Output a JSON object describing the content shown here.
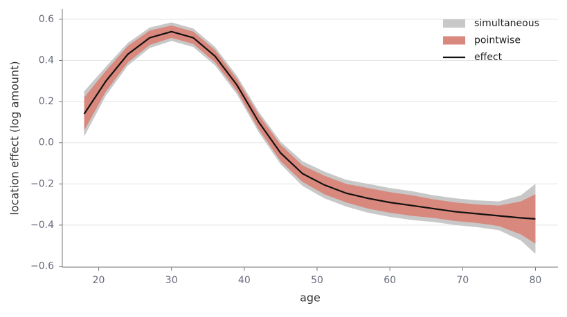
{
  "chart_data": {
    "type": "band-line",
    "xlabel": "age",
    "ylabel": "location effect (log amount)",
    "x": [
      18,
      21,
      24,
      27,
      30,
      33,
      36,
      39,
      42,
      45,
      48,
      51,
      54,
      57,
      60,
      63,
      66,
      69,
      72,
      75,
      78,
      80
    ],
    "series": [
      {
        "name": "simultaneous",
        "kind": "band",
        "color": "#c8c8c8",
        "lower": [
          0.03,
          0.23,
          0.375,
          0.46,
          0.495,
          0.465,
          0.375,
          0.235,
          0.05,
          -0.105,
          -0.21,
          -0.27,
          -0.31,
          -0.34,
          -0.36,
          -0.375,
          -0.385,
          -0.4,
          -0.41,
          -0.425,
          -0.475,
          -0.54
        ],
        "upper": [
          0.25,
          0.37,
          0.485,
          0.56,
          0.585,
          0.555,
          0.465,
          0.325,
          0.15,
          0.005,
          -0.09,
          -0.14,
          -0.18,
          -0.2,
          -0.22,
          -0.235,
          -0.255,
          -0.27,
          -0.28,
          -0.285,
          -0.255,
          -0.2
        ]
      },
      {
        "name": "pointwise",
        "kind": "band",
        "color": "#d8887c",
        "lower": [
          0.06,
          0.25,
          0.39,
          0.475,
          0.51,
          0.48,
          0.39,
          0.25,
          0.065,
          -0.09,
          -0.19,
          -0.25,
          -0.29,
          -0.32,
          -0.34,
          -0.355,
          -0.365,
          -0.38,
          -0.39,
          -0.405,
          -0.445,
          -0.49
        ],
        "upper": [
          0.22,
          0.35,
          0.47,
          0.545,
          0.57,
          0.54,
          0.45,
          0.31,
          0.135,
          -0.01,
          -0.11,
          -0.16,
          -0.2,
          -0.22,
          -0.24,
          -0.255,
          -0.275,
          -0.29,
          -0.3,
          -0.305,
          -0.285,
          -0.25
        ]
      },
      {
        "name": "effect",
        "kind": "line",
        "color": "#111111",
        "values": [
          0.14,
          0.3,
          0.43,
          0.51,
          0.54,
          0.51,
          0.42,
          0.28,
          0.1,
          -0.05,
          -0.15,
          -0.205,
          -0.245,
          -0.27,
          -0.29,
          -0.305,
          -0.32,
          -0.335,
          -0.345,
          -0.355,
          -0.365,
          -0.37
        ]
      }
    ],
    "xlim": [
      15,
      83.1
    ],
    "ylim": [
      -0.605,
      0.65
    ],
    "xticks": [
      20,
      30,
      40,
      50,
      60,
      70,
      80
    ],
    "yticks": [
      {
        "value": -0.6,
        "label": "−0.6"
      },
      {
        "value": -0.4,
        "label": "−0.4"
      },
      {
        "value": -0.2,
        "label": "−0.2"
      },
      {
        "value": 0,
        "label": "0.0"
      },
      0.2,
      0.4,
      0.6
    ],
    "grid": true,
    "legend": "upper right"
  }
}
